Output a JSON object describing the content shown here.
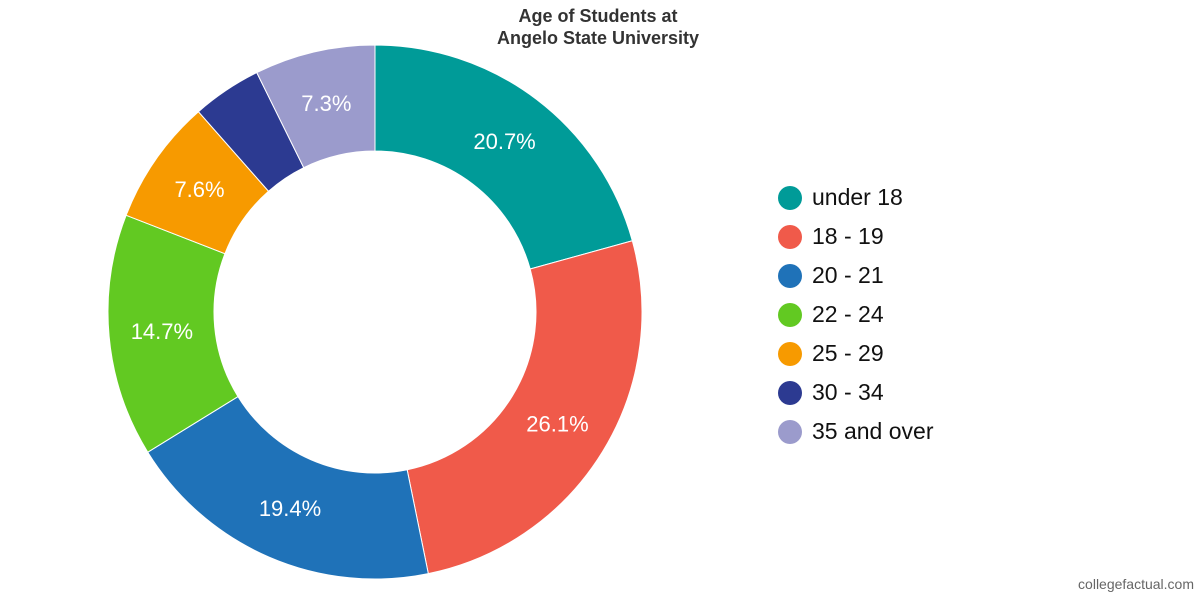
{
  "chart_data": {
    "type": "pie",
    "title": [
      "Age of Students at",
      "Angelo State University"
    ],
    "donut": true,
    "legend_position": "right",
    "series": [
      {
        "label": "under 18",
        "value": 20.7,
        "display": "20.7%",
        "color": "#009b98"
      },
      {
        "label": "18 - 19",
        "value": 26.1,
        "display": "26.1%",
        "color": "#f05a4a"
      },
      {
        "label": "20 - 21",
        "value": 19.4,
        "display": "19.4%",
        "color": "#1f72b8"
      },
      {
        "label": "22 - 24",
        "value": 14.7,
        "display": "14.7%",
        "color": "#62c922"
      },
      {
        "label": "25 - 29",
        "value": 7.6,
        "display": "7.6%",
        "color": "#f79a00"
      },
      {
        "label": "30 - 34",
        "value": 4.2,
        "display": "",
        "color": "#2c3a91"
      },
      {
        "label": "35 and over",
        "value": 7.3,
        "display": "7.3%",
        "color": "#9b9bcc"
      }
    ]
  },
  "credit": "collegefactual.com"
}
